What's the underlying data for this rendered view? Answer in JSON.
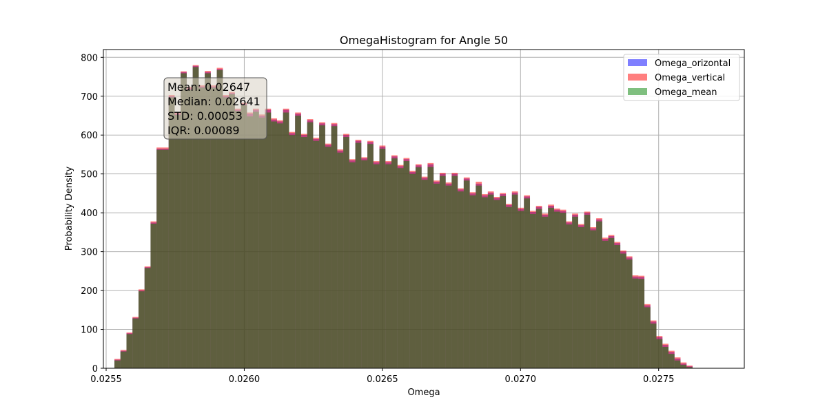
{
  "chart_data": {
    "type": "histogram",
    "title": "OmegaHistogram for Angle 50",
    "xlabel": "Omega",
    "ylabel": "Probability Density",
    "xlim": [
      0.02549,
      0.02781
    ],
    "ylim": [
      0,
      820
    ],
    "x_ticks": [
      0.0255,
      0.026,
      0.0265,
      0.027,
      0.0275
    ],
    "x_tick_labels": [
      "0.0255",
      "0.0260",
      "0.0265",
      "0.0270",
      "0.0275"
    ],
    "y_ticks": [
      0,
      100,
      200,
      300,
      400,
      500,
      600,
      700,
      800
    ],
    "y_tick_labels": [
      "0",
      "100",
      "200",
      "300",
      "400",
      "500",
      "600",
      "700",
      "800"
    ],
    "grid": true,
    "legend_position": "top-right",
    "bin_start": 0.02553,
    "bin_width": 2.18e-05,
    "series": [
      {
        "name": "Omega_orizontal",
        "color": "#0000ff",
        "alpha": 0.5,
        "values": [
          22,
          45,
          90,
          130,
          200,
          260,
          375,
          565,
          565,
          700,
          655,
          762,
          720,
          778,
          725,
          762,
          725,
          770,
          700,
          708,
          665,
          680,
          655,
          665,
          650,
          665,
          640,
          635,
          665,
          605,
          655,
          600,
          638,
          590,
          630,
          575,
          628,
          560,
          600,
          535,
          585,
          540,
          582,
          530,
          570,
          530,
          545,
          520,
          538,
          505,
          522,
          490,
          525,
          480,
          500,
          475,
          500,
          460,
          488,
          450,
          475,
          445,
          452,
          438,
          448,
          420,
          452,
          410,
          442,
          402,
          415,
          395,
          418,
          408,
          405,
          375,
          395,
          368,
          400,
          360,
          383,
          333,
          340,
          322,
          300,
          285,
          236,
          235,
          162,
          120,
          80,
          60,
          42,
          25,
          12,
          5
        ]
      },
      {
        "name": "Omega_vertical",
        "color": "#ff0000",
        "alpha": 0.5,
        "values": [
          24,
          47,
          92,
          132,
          203,
          262,
          378,
          568,
          568,
          703,
          658,
          764,
          724,
          780,
          728,
          765,
          728,
          773,
          703,
          711,
          668,
          683,
          658,
          668,
          653,
          668,
          643,
          638,
          668,
          608,
          658,
          603,
          641,
          593,
          633,
          578,
          631,
          563,
          603,
          538,
          588,
          543,
          585,
          533,
          573,
          533,
          548,
          523,
          541,
          508,
          525,
          493,
          528,
          483,
          503,
          478,
          503,
          463,
          491,
          453,
          480,
          448,
          455,
          441,
          451,
          423,
          455,
          413,
          445,
          405,
          418,
          398,
          421,
          411,
          408,
          378,
          398,
          371,
          403,
          363,
          386,
          336,
          343,
          325,
          303,
          288,
          239,
          238,
          165,
          123,
          83,
          63,
          45,
          28,
          15,
          7
        ]
      },
      {
        "name": "Omega_mean",
        "color": "#008000",
        "alpha": 0.5,
        "values": [
          20,
          43,
          88,
          128,
          198,
          258,
          372,
          562,
          562,
          697,
          652,
          759,
          717,
          775,
          722,
          759,
          722,
          767,
          697,
          705,
          662,
          677,
          648,
          660,
          645,
          658,
          635,
          630,
          658,
          600,
          650,
          595,
          633,
          585,
          625,
          570,
          623,
          555,
          595,
          530,
          580,
          535,
          577,
          525,
          565,
          525,
          540,
          515,
          533,
          500,
          517,
          485,
          518,
          475,
          495,
          470,
          495,
          455,
          483,
          445,
          470,
          440,
          447,
          433,
          443,
          415,
          447,
          405,
          437,
          397,
          410,
          390,
          413,
          403,
          400,
          370,
          390,
          363,
          395,
          355,
          378,
          328,
          335,
          317,
          295,
          280,
          231,
          230,
          157,
          115,
          75,
          55,
          37,
          20,
          9,
          3
        ]
      }
    ],
    "stats_box": {
      "lines": [
        "Mean: 0.02647",
        "Median: 0.02641",
        "STD: 0.00053",
        "IQR: 0.00089"
      ]
    }
  }
}
